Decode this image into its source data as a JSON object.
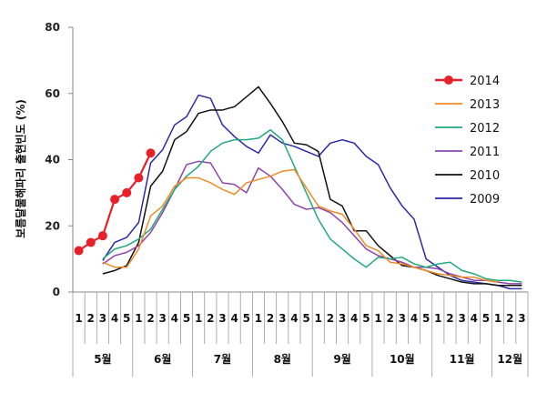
{
  "chart_data": {
    "type": "line",
    "ylabel": "보름달물해파리 출현빈도 (%)",
    "ylim": [
      0,
      80
    ],
    "yticks": [
      0,
      20,
      40,
      60,
      80
    ],
    "grid": false,
    "legend_position": "right",
    "weeks": [
      "1",
      "2",
      "3",
      "4",
      "5",
      "1",
      "2",
      "3",
      "4",
      "5",
      "1",
      "2",
      "3",
      "4",
      "5",
      "1",
      "2",
      "3",
      "4",
      "5",
      "1",
      "2",
      "3",
      "4",
      "5",
      "1",
      "2",
      "3",
      "4",
      "5",
      "1",
      "2",
      "3",
      "4",
      "5",
      "1",
      "2",
      "3"
    ],
    "months": [
      {
        "label": "5월",
        "start": 0,
        "end": 4
      },
      {
        "label": "6월",
        "start": 5,
        "end": 9
      },
      {
        "label": "7월",
        "start": 10,
        "end": 14
      },
      {
        "label": "8월",
        "start": 15,
        "end": 19
      },
      {
        "label": "9월",
        "start": 20,
        "end": 24
      },
      {
        "label": "10월",
        "start": 25,
        "end": 29
      },
      {
        "label": "11월",
        "start": 30,
        "end": 34
      },
      {
        "label": "12월",
        "start": 35,
        "end": 37
      }
    ],
    "series": [
      {
        "name": "2014",
        "color": "#e8202a",
        "marker": "circle",
        "start": 0,
        "values": [
          12.5,
          15,
          17,
          28,
          30,
          34.5,
          42
        ]
      },
      {
        "name": "2013",
        "color": "#f08c28",
        "marker": "none",
        "start": 2,
        "values": [
          9,
          7.5,
          7.5,
          13,
          23,
          26,
          32,
          34.5,
          34.5,
          33,
          31,
          29.5,
          33,
          34,
          35,
          36.5,
          37,
          31.5,
          26,
          24.5,
          23.5,
          19,
          14,
          12.5,
          9,
          8.5,
          7.5,
          6.5,
          5.5,
          5,
          4.5,
          4.5,
          3.5,
          3
        ]
      },
      {
        "name": "2012",
        "color": "#21a87c",
        "marker": "none",
        "start": 2,
        "values": [
          10,
          13,
          14,
          16,
          19,
          25,
          31,
          35,
          38,
          42.5,
          45,
          46,
          46,
          46.5,
          49,
          46,
          38,
          30,
          22,
          16,
          13,
          10,
          7.5,
          10.5,
          10,
          10.5,
          8.5,
          7.5,
          8.5,
          9,
          6.5,
          5.5,
          4,
          3.5,
          3.5,
          3
        ]
      },
      {
        "name": "2011",
        "color": "#8e44ad",
        "marker": "none",
        "start": 2,
        "values": [
          8.5,
          11,
          12,
          14,
          18,
          24,
          31,
          38.5,
          39.5,
          39,
          33,
          32.5,
          30,
          37.5,
          35,
          31,
          26.5,
          25,
          25.5,
          24,
          21,
          17,
          13,
          11,
          10,
          9,
          7.5,
          7.5,
          7,
          5.5,
          4.5,
          3.5,
          3.5,
          3,
          2.5,
          2.5
        ]
      },
      {
        "name": "2010",
        "color": "#111111",
        "marker": "none",
        "start": 2,
        "values": [
          5.5,
          6.5,
          8,
          15,
          32,
          36.5,
          46,
          48.5,
          54,
          55,
          55,
          56,
          59,
          62,
          57,
          51.5,
          45,
          44.5,
          42.5,
          28,
          26,
          18.5,
          18.5,
          14,
          11,
          8,
          7.5,
          6.5,
          5,
          4,
          3,
          2.5,
          2.5,
          2,
          2,
          2
        ]
      },
      {
        "name": "2009",
        "color": "#2a2aa6",
        "marker": "none",
        "start": 2,
        "values": [
          9.5,
          15,
          16.5,
          21,
          39,
          43,
          50.5,
          53,
          59.5,
          58.5,
          50.5,
          47,
          44,
          42,
          47.5,
          45,
          44,
          42.5,
          41,
          45,
          46,
          45,
          41,
          38.5,
          31.5,
          26,
          22,
          10,
          7.5,
          5,
          3.5,
          3,
          2.5,
          2,
          1,
          1
        ]
      }
    ]
  }
}
